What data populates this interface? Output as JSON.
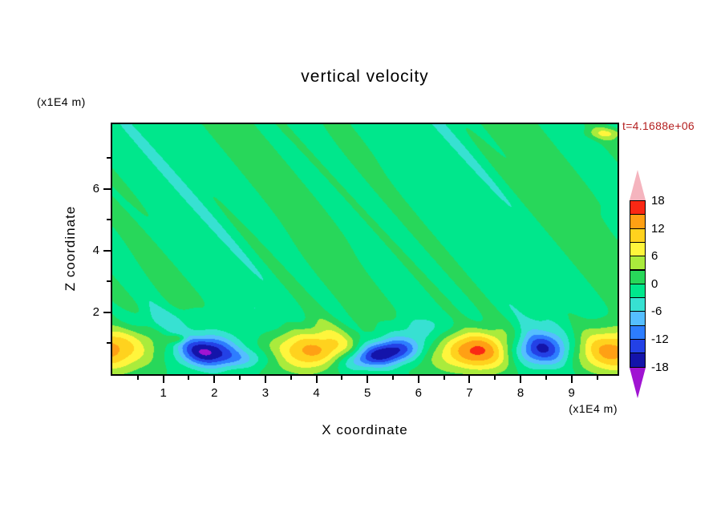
{
  "chart_data": {
    "type": "filled-contour",
    "title": "vertical velocity",
    "time_label": "t=4.1688e+06",
    "time_color": "#b42020",
    "xlabel": "X coordinate",
    "ylabel": "Z coordinate",
    "x_unit": "(x1E4 m)",
    "y_unit": "(x1E4 m)",
    "x_range": [
      0,
      9.9
    ],
    "z_range": [
      0,
      8.1
    ],
    "x_ticks": [
      1,
      2,
      3,
      4,
      5,
      6,
      7,
      8,
      9
    ],
    "x_minor_ticks": [
      0.5,
      1.5,
      2.5,
      3.5,
      4.5,
      5.5,
      6.5,
      7.5,
      8.5,
      9.5
    ],
    "z_ticks": [
      2,
      4,
      6
    ],
    "z_minor_ticks": [
      1,
      3,
      5,
      7
    ],
    "levels": [
      -18,
      -15,
      -12,
      -9,
      -6,
      -3,
      0,
      3,
      6,
      9,
      12,
      15,
      18
    ],
    "palette": [
      "#a014d2",
      "#1414aa",
      "#2341e6",
      "#2d7dff",
      "#55beff",
      "#37e1d2",
      "#00e78c",
      "#28d75a",
      "#aaeb3c",
      "#fff53c",
      "#ffd21e",
      "#ffa014",
      "#fa2814",
      "#f5b4be"
    ],
    "background": {
      "mean": -0.6,
      "waves": [
        [
          1.1,
          1.2,
          0.5,
          0.4
        ],
        [
          0.9,
          2.3,
          0.9,
          1.9
        ],
        [
          0.8,
          3.6,
          1.7,
          4.1
        ],
        [
          0.7,
          5.2,
          2.6,
          0.8
        ],
        [
          0.6,
          7.3,
          3.8,
          2.6
        ],
        [
          0.5,
          9.1,
          5.2,
          5.1
        ]
      ]
    },
    "features": [
      {
        "x": -0.15,
        "z": 0.8,
        "amp": 14,
        "sx": 0.6,
        "sz": 0.5
      },
      {
        "x": 1.27,
        "z": 1.15,
        "amp": 7,
        "sx": 0.13,
        "sz": 0.1
      },
      {
        "x": 1.85,
        "z": 0.8,
        "amp": -16.5,
        "sx": 0.4,
        "sz": 0.34
      },
      {
        "x": 2.45,
        "z": 0.5,
        "amp": -7,
        "sx": 0.5,
        "sz": 0.24
      },
      {
        "x": 3.9,
        "z": 0.75,
        "amp": 14.5,
        "sx": 0.62,
        "sz": 0.5
      },
      {
        "x": 4.95,
        "z": 0.5,
        "amp": -11,
        "sx": 0.48,
        "sz": 0.26,
        "rot": 18
      },
      {
        "x": 5.55,
        "z": 0.8,
        "amp": -13.5,
        "sx": 0.42,
        "sz": 0.3,
        "rot": 18
      },
      {
        "x": 7.15,
        "z": 0.75,
        "amp": 16.2,
        "sx": 0.58,
        "sz": 0.46
      },
      {
        "x": 8.35,
        "z": 0.8,
        "amp": -16,
        "sx": 0.42,
        "sz": 0.38
      },
      {
        "x": 9.8,
        "z": 0.75,
        "amp": 14,
        "sx": 0.55,
        "sz": 0.5
      },
      {
        "x": 9.7,
        "z": 7.8,
        "amp": 6,
        "sx": 0.28,
        "sz": 0.14
      },
      {
        "x": 0.9,
        "z": 1.7,
        "amp": -3.2,
        "sx": 0.9,
        "sz": 0.28
      },
      {
        "x": 6.0,
        "z": 1.5,
        "amp": -2.8,
        "sx": 0.8,
        "sz": 0.26
      }
    ],
    "colorbar": {
      "labels": [
        "18",
        "12",
        "6",
        "0",
        "-6",
        "-12",
        "-18"
      ],
      "arrow_top_color": "#f5b4be",
      "arrow_bottom_color": "#a014d2",
      "band_colors_top_to_bottom": [
        "#fa2814",
        "#ffa014",
        "#ffd21e",
        "#fff53c",
        "#aaeb3c",
        "#28d75a",
        "#00e78c",
        "#37e1d2",
        "#55beff",
        "#2d7dff",
        "#2341e6",
        "#1414aa"
      ]
    }
  }
}
